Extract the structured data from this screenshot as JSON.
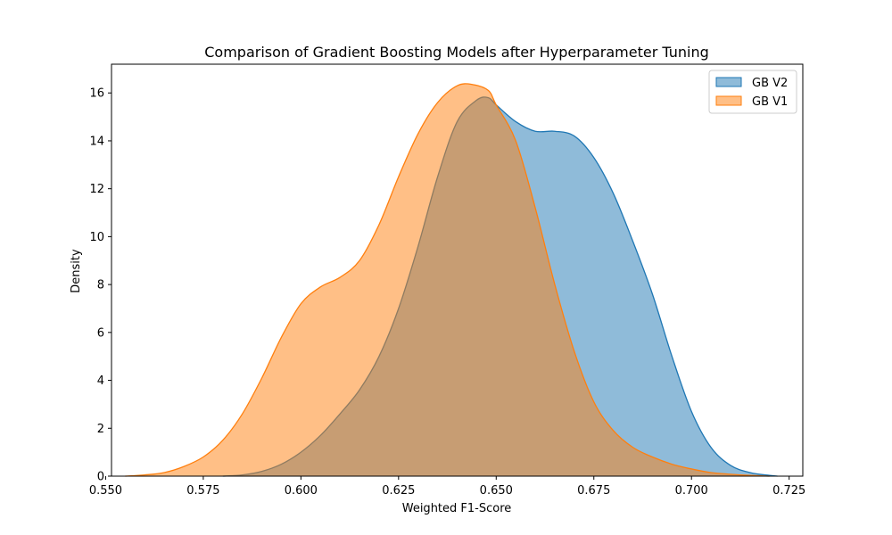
{
  "chart_data": {
    "type": "area",
    "title": "Comparison of Gradient Boosting Models after Hyperparameter Tuning",
    "xlabel": "Weighted F1-Score",
    "ylabel": "Density",
    "xlim": [
      0.5515,
      0.7285
    ],
    "ylim": [
      0,
      17.2
    ],
    "xticks": [
      0.55,
      0.575,
      0.6,
      0.625,
      0.65,
      0.675,
      0.7,
      0.725
    ],
    "yticks": [
      0,
      2,
      4,
      6,
      8,
      10,
      12,
      14,
      16
    ],
    "grid": false,
    "legend": "top-right",
    "series": [
      {
        "name": "GB V2",
        "color": "#1f77b4",
        "fill": "#7fb3d8",
        "x": [
          0.58,
          0.585,
          0.59,
          0.595,
          0.6,
          0.605,
          0.61,
          0.615,
          0.62,
          0.625,
          0.63,
          0.635,
          0.64,
          0.645,
          0.648,
          0.65,
          0.655,
          0.66,
          0.665,
          0.67,
          0.675,
          0.68,
          0.685,
          0.69,
          0.695,
          0.7,
          0.705,
          0.71,
          0.715,
          0.72,
          0.722
        ],
        "y": [
          0.0,
          0.05,
          0.2,
          0.5,
          1.0,
          1.7,
          2.6,
          3.6,
          5.0,
          7.0,
          9.6,
          12.5,
          14.8,
          15.7,
          15.8,
          15.5,
          14.8,
          14.4,
          14.4,
          14.2,
          13.3,
          11.8,
          9.8,
          7.6,
          5.0,
          2.7,
          1.2,
          0.45,
          0.15,
          0.03,
          0.0
        ]
      },
      {
        "name": "GB V1",
        "color": "#ff7f0e",
        "fill": "#ffb87a",
        "x": [
          0.555,
          0.56,
          0.565,
          0.57,
          0.575,
          0.58,
          0.585,
          0.59,
          0.595,
          0.6,
          0.605,
          0.61,
          0.615,
          0.62,
          0.625,
          0.63,
          0.635,
          0.64,
          0.644,
          0.648,
          0.65,
          0.655,
          0.66,
          0.665,
          0.67,
          0.675,
          0.68,
          0.685,
          0.69,
          0.695,
          0.7,
          0.705,
          0.71,
          0.715,
          0.72
        ],
        "y": [
          0.0,
          0.05,
          0.15,
          0.4,
          0.8,
          1.5,
          2.6,
          4.1,
          5.8,
          7.2,
          7.9,
          8.3,
          9.0,
          10.5,
          12.5,
          14.3,
          15.6,
          16.3,
          16.35,
          16.1,
          15.5,
          14.0,
          11.2,
          8.0,
          5.2,
          3.1,
          1.9,
          1.2,
          0.8,
          0.5,
          0.3,
          0.15,
          0.08,
          0.03,
          0.0
        ]
      }
    ]
  }
}
